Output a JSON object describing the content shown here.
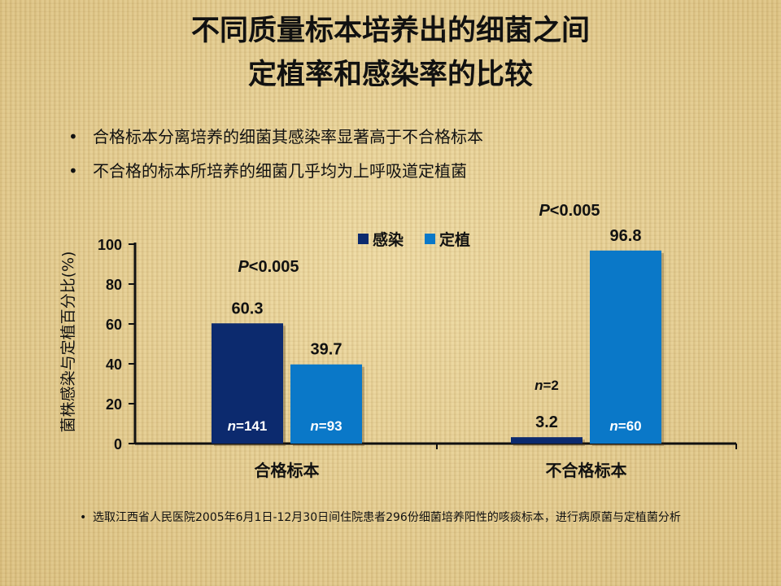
{
  "title_line1": "不同质量标本培养出的细菌之间",
  "title_line2": "定植率和感染率的比较",
  "bullets": [
    "合格标本分离培养的细菌其感染率显著高于不合格标本",
    "不合格的标本所培养的细菌几乎均为上呼吸道定植菌"
  ],
  "footnote": "选取江西省人民医院2005年6月1日-12月30日间住院患者296份细菌培养阳性的咳痰标本，进行病原菌与定植菌分析",
  "colors": {
    "infection": "#0c2a6e",
    "colonization": "#0a78c8"
  },
  "chart_data": {
    "type": "bar",
    "categories": [
      "合格标本",
      "不合格标本"
    ],
    "series": [
      {
        "name": "感染",
        "values": [
          60.3,
          3.2
        ],
        "n_labels": [
          "n=141",
          "n=2"
        ]
      },
      {
        "name": "定植",
        "values": [
          39.7,
          96.8
        ],
        "n_labels": [
          "n=93",
          "n=60"
        ]
      }
    ],
    "ylabel": "菌株感染与定植百分比(%)",
    "ylim": [
      0,
      100
    ],
    "yticks": [
      0,
      20,
      40,
      60,
      80,
      100
    ],
    "p_values": [
      "P<0.005",
      "P<0.005"
    ],
    "legend_position": "top-center",
    "grid": false
  }
}
